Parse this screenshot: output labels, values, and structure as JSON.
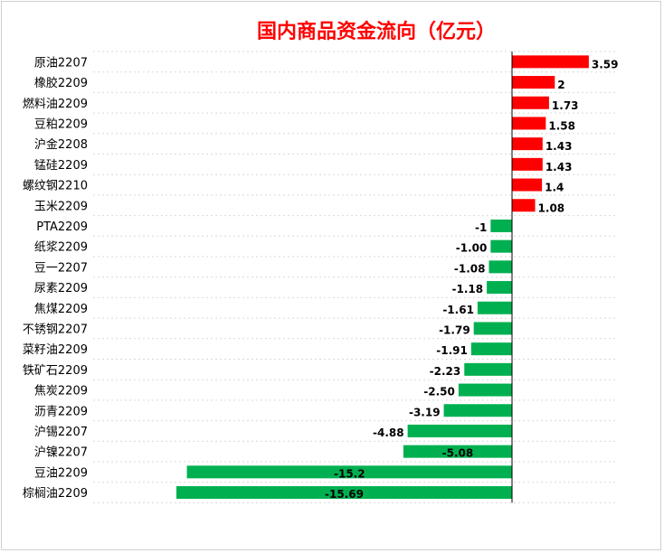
{
  "chart_data": {
    "type": "bar",
    "orientation": "horizontal",
    "title": "国内商品资金流向（亿元）",
    "xlabel": "",
    "ylabel": "",
    "grid": true,
    "legend": "none",
    "xlim": [
      -16.5,
      3.59
    ],
    "colors": {
      "positive": "#ff0000",
      "negative": "#00b050",
      "title": "#ff0000"
    },
    "categories": [
      "原油2207",
      "橡胶2209",
      "燃料油2209",
      "豆粕2209",
      "沪金2208",
      "锰硅2209",
      "螺纹钢2210",
      "玉米2209",
      "PTA2209",
      "纸浆2209",
      "豆一2207",
      "尿素2209",
      "焦煤2209",
      "不锈钢2207",
      "菜籽油2209",
      "铁矿石2209",
      "焦炭2209",
      "沥青2209",
      "沪锡2207",
      "沪镍2207",
      "豆油2209",
      "棕榈油2209"
    ],
    "values": [
      3.59,
      2,
      1.73,
      1.58,
      1.43,
      1.43,
      1.4,
      1.08,
      -1,
      -1.0,
      -1.08,
      -1.18,
      -1.61,
      -1.79,
      -1.91,
      -2.23,
      -2.5,
      -3.19,
      -4.88,
      -5.08,
      -15.2,
      -15.69
    ],
    "labels": [
      "3.59",
      "2",
      "1.73",
      "1.58",
      "1.43",
      "1.43",
      "1.4",
      "1.08",
      "-1",
      "-1.00",
      "-1.08",
      "-1.18",
      "-1.61",
      "-1.79",
      "-1.91",
      "-2.23",
      "-2.50",
      "-3.19",
      "-4.88",
      "-5.08",
      "-15.2",
      "-15.69"
    ]
  }
}
